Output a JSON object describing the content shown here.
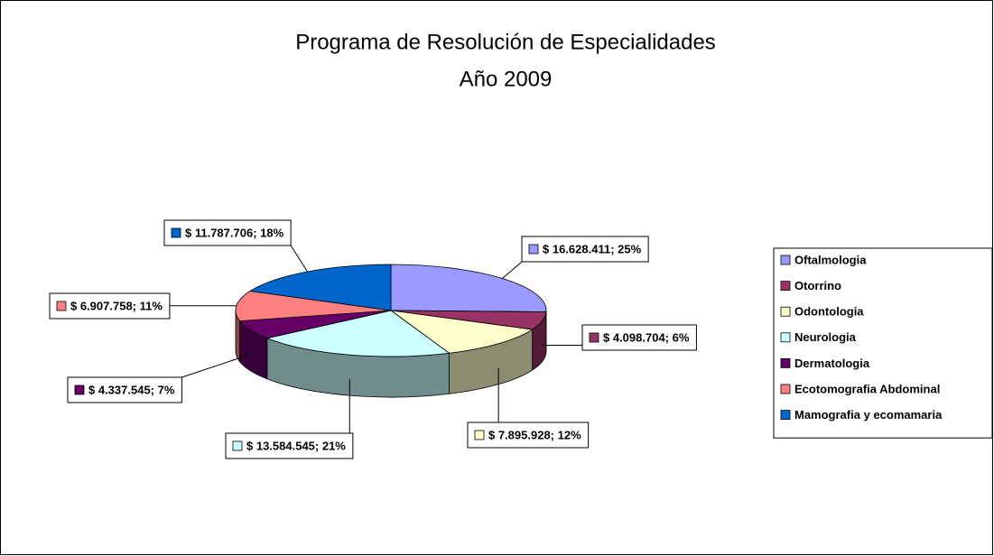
{
  "chart_data": {
    "type": "pie3d",
    "title": "Programa de Resolución de Especialidades",
    "subtitle": "Año 2009",
    "categories": [
      "Oftalmologia",
      "Otorrino",
      "Odontologia",
      "Neurologia",
      "Dermatologia",
      "Ecotomografia Abdominal",
      "Mamografia y ecomamaria"
    ],
    "values": [
      16628411,
      4098704,
      7895928,
      13584545,
      4337545,
      6907758,
      11787706
    ],
    "value_labels": [
      "$ 16.628.411; 25%",
      "$ 4.098.704; 6%",
      "$ 7.895.928; 12%",
      "$ 13.584.545; 21%",
      "$ 4.337.545; 7%",
      "$ 6.907.758; 11%",
      "$ 11.787.706; 18%"
    ],
    "colors": [
      "#9999ff",
      "#993366",
      "#ffffcc",
      "#ccffff",
      "#660066",
      "#ff8080",
      "#0066cc"
    ],
    "legend": "right"
  }
}
